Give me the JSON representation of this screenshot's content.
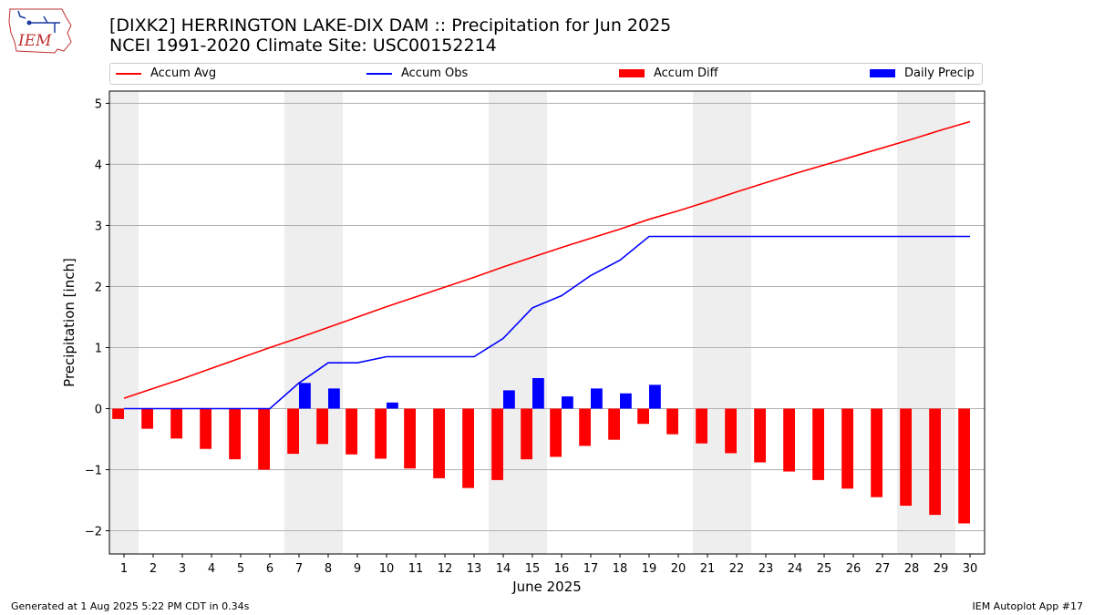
{
  "header": {
    "logo_text": "IEM",
    "title_line1": "[DIXK2] HERRINGTON LAKE-DIX DAM :: Precipitation for Jun 2025",
    "title_line2": "NCEI 1991-2020 Climate Site: USC00152214"
  },
  "legend": {
    "items": [
      {
        "label": "Accum Avg",
        "kind": "line",
        "color": "#ff0000"
      },
      {
        "label": "Accum Obs",
        "kind": "line",
        "color": "#0000ff"
      },
      {
        "label": "Accum Diff",
        "kind": "bar",
        "color": "#ff0000"
      },
      {
        "label": "Daily Precip",
        "kind": "bar",
        "color": "#0000ff"
      }
    ]
  },
  "footer": {
    "left": "Generated at 1 Aug 2025 5:22 PM CDT in 0.34s",
    "right": "IEM Autoplot App #17"
  },
  "chart_data": {
    "type": "bar",
    "xlabel": "June 2025",
    "ylabel": "Precipitation [inch]",
    "x": [
      1,
      2,
      3,
      4,
      5,
      6,
      7,
      8,
      9,
      10,
      11,
      12,
      13,
      14,
      15,
      16,
      17,
      18,
      19,
      20,
      21,
      22,
      23,
      24,
      25,
      26,
      27,
      28,
      29,
      30
    ],
    "ylim": [
      -2.38,
      5.2
    ],
    "yticks": [
      -2,
      -1,
      0,
      1,
      2,
      3,
      4,
      5
    ],
    "weekend_days": [
      1,
      7,
      8,
      14,
      15,
      21,
      22,
      28,
      29
    ],
    "grid": true,
    "legend_placement": "top",
    "series": [
      {
        "name": "Accum Avg",
        "type": "line",
        "color": "#ff0000",
        "values": [
          0.17,
          0.33,
          0.49,
          0.66,
          0.83,
          1.0,
          1.16,
          1.33,
          1.5,
          1.67,
          1.83,
          1.99,
          2.15,
          2.32,
          2.48,
          2.64,
          2.79,
          2.94,
          3.1,
          3.24,
          3.39,
          3.55,
          3.7,
          3.85,
          3.99,
          4.13,
          4.27,
          4.41,
          4.56,
          4.7
        ]
      },
      {
        "name": "Accum Obs",
        "type": "line",
        "color": "#0000ff",
        "values": [
          0.0,
          0.0,
          0.0,
          0.0,
          0.0,
          0.0,
          0.42,
          0.75,
          0.75,
          0.85,
          0.85,
          0.85,
          0.85,
          1.15,
          1.65,
          1.85,
          2.18,
          2.43,
          2.82,
          2.82,
          2.82,
          2.82,
          2.82,
          2.82,
          2.82,
          2.82,
          2.82,
          2.82,
          2.82,
          2.82
        ]
      },
      {
        "name": "Accum Diff",
        "type": "bar",
        "color": "#ff0000",
        "values": [
          -0.17,
          -0.33,
          -0.49,
          -0.66,
          -0.83,
          -1.0,
          -0.74,
          -0.58,
          -0.75,
          -0.82,
          -0.98,
          -1.14,
          -1.3,
          -1.17,
          -0.83,
          -0.79,
          -0.61,
          -0.51,
          -0.25,
          -0.42,
          -0.57,
          -0.73,
          -0.88,
          -1.03,
          -1.17,
          -1.31,
          -1.45,
          -1.59,
          -1.74,
          -1.88
        ]
      },
      {
        "name": "Daily Precip",
        "type": "bar",
        "color": "#0000ff",
        "values": [
          0,
          0,
          0,
          0,
          0,
          0,
          0.42,
          0.33,
          0,
          0.1,
          0,
          0,
          0,
          0.3,
          0.5,
          0.2,
          0.33,
          0.25,
          0.39,
          0,
          0,
          0,
          0,
          0,
          0,
          0,
          0,
          0,
          0,
          0
        ]
      }
    ]
  }
}
